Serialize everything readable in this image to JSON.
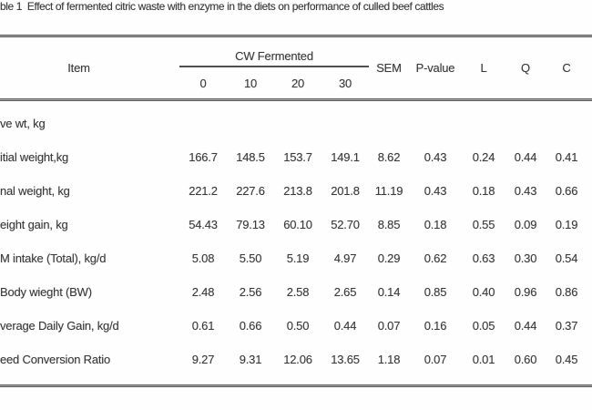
{
  "title": "ble 1  Effect of fermented citric waste with enzyme in the diets on performance of culled beef cattles",
  "table": {
    "item_header": "Item",
    "group_header": "CW Fermented",
    "group_subheaders": [
      "0",
      "10",
      "20",
      "30"
    ],
    "stat_headers": [
      "SEM",
      "P-value",
      "L",
      "Q",
      "C"
    ],
    "rows": [
      {
        "item": "ve wt, kg",
        "values": [
          "",
          "",
          "",
          "",
          "",
          "",
          "",
          "",
          ""
        ]
      },
      {
        "item": "itial weight,kg",
        "values": [
          "166.7",
          "148.5",
          "153.7",
          "149.1",
          "8.62",
          "0.43",
          "0.24",
          "0.44",
          "0.41"
        ]
      },
      {
        "item": "nal weight, kg",
        "values": [
          "221.2",
          "227.6",
          "213.8",
          "201.8",
          "11.19",
          "0.43",
          "0.18",
          "0.43",
          "0.66"
        ]
      },
      {
        "item": "eight gain, kg",
        "values": [
          "54.43",
          "79.13",
          "60.10",
          "52.70",
          "8.85",
          "0.18",
          "0.55",
          "0.09",
          "0.19"
        ]
      },
      {
        "item": "M intake (Total), kg/d",
        "values": [
          "5.08",
          "5.50",
          "5.19",
          "4.97",
          "0.29",
          "0.62",
          "0.63",
          "0.30",
          "0.54"
        ]
      },
      {
        "item": "Body wieght (BW)",
        "values": [
          "2.48",
          "2.56",
          "2.58",
          "2.65",
          "0.14",
          "0.85",
          "0.40",
          "0.96",
          "0.86"
        ]
      },
      {
        "item": "verage Daily Gain, kg/d",
        "values": [
          "0.61",
          "0.66",
          "0.50",
          "0.44",
          "0.07",
          "0.16",
          "0.05",
          "0.44",
          "0.37"
        ]
      },
      {
        "item": "eed Conversion Ratio",
        "values": [
          "9.27",
          "9.31",
          "12.06",
          "13.65",
          "1.18",
          "0.07",
          "0.01",
          "0.60",
          "0.45"
        ]
      }
    ]
  },
  "colors": {
    "text": "#3c3c3c",
    "rule_dark": "#555555",
    "rule_light": "#cfcfcf",
    "group_underline": "#4f4f4f",
    "background": "#fefefe"
  }
}
